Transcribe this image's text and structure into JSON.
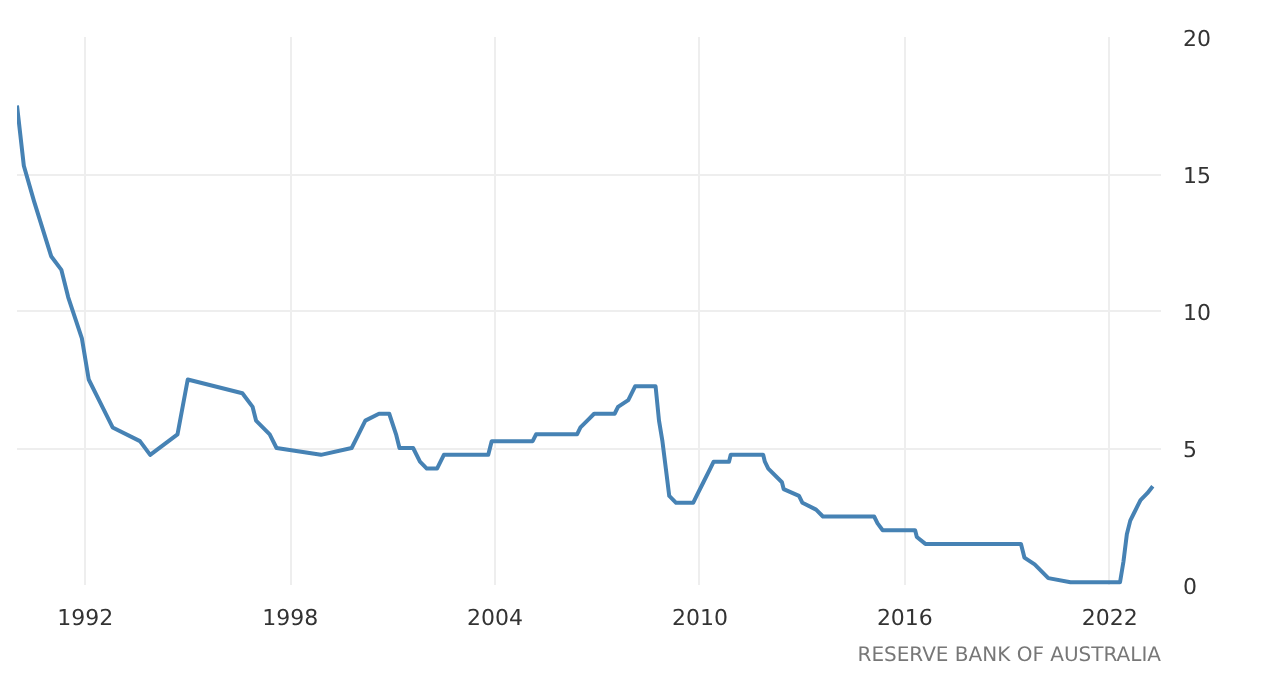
{
  "chart_data": {
    "type": "line",
    "x": [
      1990.0,
      1990.2,
      1990.5,
      1991.0,
      1991.3,
      1991.5,
      1991.9,
      1992.1,
      1992.5,
      1992.8,
      1993.6,
      1993.9,
      1994.7,
      1995.0,
      1996.6,
      1996.9,
      1997.0,
      1997.4,
      1997.6,
      1998.9,
      1999.8,
      2000.0,
      2000.2,
      2000.6,
      2000.9,
      2001.1,
      2001.2,
      2001.6,
      2001.8,
      2002.0,
      2002.3,
      2002.5,
      2003.8,
      2003.9,
      2005.1,
      2005.2,
      2006.4,
      2006.5,
      2006.7,
      2006.9,
      2007.5,
      2007.6,
      2007.9,
      2008.1,
      2008.7,
      2008.8,
      2008.9,
      2009.0,
      2009.1,
      2009.3,
      2009.8,
      2009.9,
      2010.1,
      2010.3,
      2010.4,
      2010.85,
      2010.9,
      2011.85,
      2011.9,
      2012.0,
      2012.4,
      2012.45,
      2012.9,
      2013.0,
      2013.4,
      2013.6,
      2015.1,
      2015.2,
      2015.35,
      2016.3,
      2016.35,
      2016.6,
      2019.4,
      2019.5,
      2019.8,
      2020.2,
      2020.85,
      2022.3,
      2022.4,
      2022.5,
      2022.6,
      2022.7,
      2022.8,
      2022.9,
      2023.1,
      2023.26
    ],
    "series": [
      {
        "color": "#4682b4",
        "values": [
          17.5,
          15.3,
          14,
          12,
          11.5,
          10.5,
          9,
          7.5,
          6.5,
          5.75,
          5.25,
          4.75,
          5.5,
          7.5,
          7.0,
          6.5,
          6.0,
          5.5,
          5.0,
          4.75,
          5.0,
          5.5,
          6.0,
          6.25,
          6.25,
          5.5,
          5.0,
          5.0,
          4.5,
          4.25,
          4.25,
          4.75,
          4.75,
          5.25,
          5.25,
          5.5,
          5.5,
          5.75,
          6.0,
          6.25,
          6.25,
          6.5,
          6.75,
          7.25,
          7.25,
          6.0,
          5.25,
          4.25,
          3.25,
          3.0,
          3.0,
          3.25,
          3.75,
          4.25,
          4.5,
          4.5,
          4.75,
          4.75,
          4.5,
          4.25,
          3.75,
          3.5,
          3.25,
          3.0,
          2.75,
          2.5,
          2.5,
          2.25,
          2.0,
          2.0,
          1.75,
          1.5,
          1.5,
          1.0,
          0.75,
          0.25,
          0.1,
          0.1,
          0.85,
          1.85,
          2.35,
          2.6,
          2.85,
          3.1,
          3.35,
          3.6
        ]
      }
    ],
    "xlim": [
      1990.0,
      2023.5
    ],
    "xticks": [
      1992,
      1998,
      2004,
      2010,
      2016,
      2022
    ],
    "ylim": [
      0,
      20
    ],
    "yticks": [
      0,
      5,
      10,
      15,
      20
    ],
    "grid": true,
    "annotations": [
      "RESERVE BANK OF AUSTRALIA"
    ]
  }
}
